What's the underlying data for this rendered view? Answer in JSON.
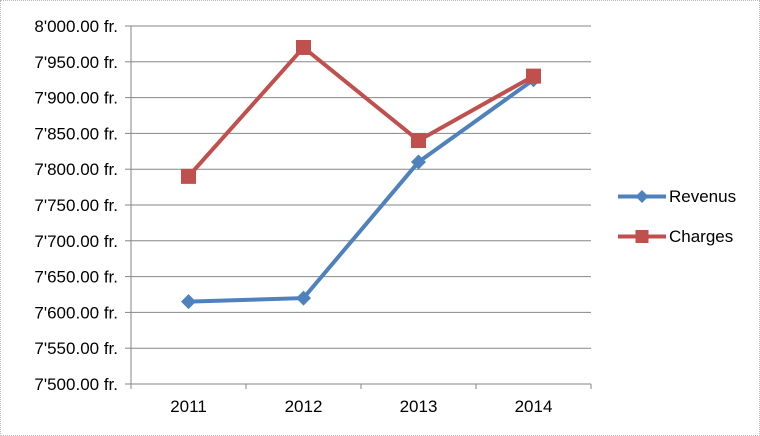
{
  "chart_data": {
    "type": "line",
    "title": "",
    "categories": [
      "2011",
      "2012",
      "2013",
      "2014"
    ],
    "series": [
      {
        "name": "Revenus",
        "color": "#4F81BD",
        "marker": "diamond",
        "values": [
          7615,
          7620,
          7810,
          7925
        ]
      },
      {
        "name": "Charges",
        "color": "#C0504D",
        "marker": "square",
        "values": [
          7790,
          7970,
          7840,
          7930
        ]
      }
    ],
    "ylim": [
      7500,
      8000
    ],
    "y_step": 50,
    "y_tick_labels": [
      "8'000.00 fr.",
      "7'950.00 fr.",
      "7'900.00 fr.",
      "7'850.00 fr.",
      "7'800.00 fr.",
      "7'750.00 fr.",
      "7'700.00 fr.",
      "7'650.00 fr.",
      "7'600.00 fr.",
      "7'550.00 fr.",
      "7'500.00 fr."
    ],
    "currency_unit": "fr.",
    "grid": true,
    "legend_position": "right",
    "colors": {
      "grid": "#868686",
      "axis": "#868686",
      "text": "#000000",
      "background": "#FFFFFF",
      "border": "#B9B9B9"
    }
  }
}
